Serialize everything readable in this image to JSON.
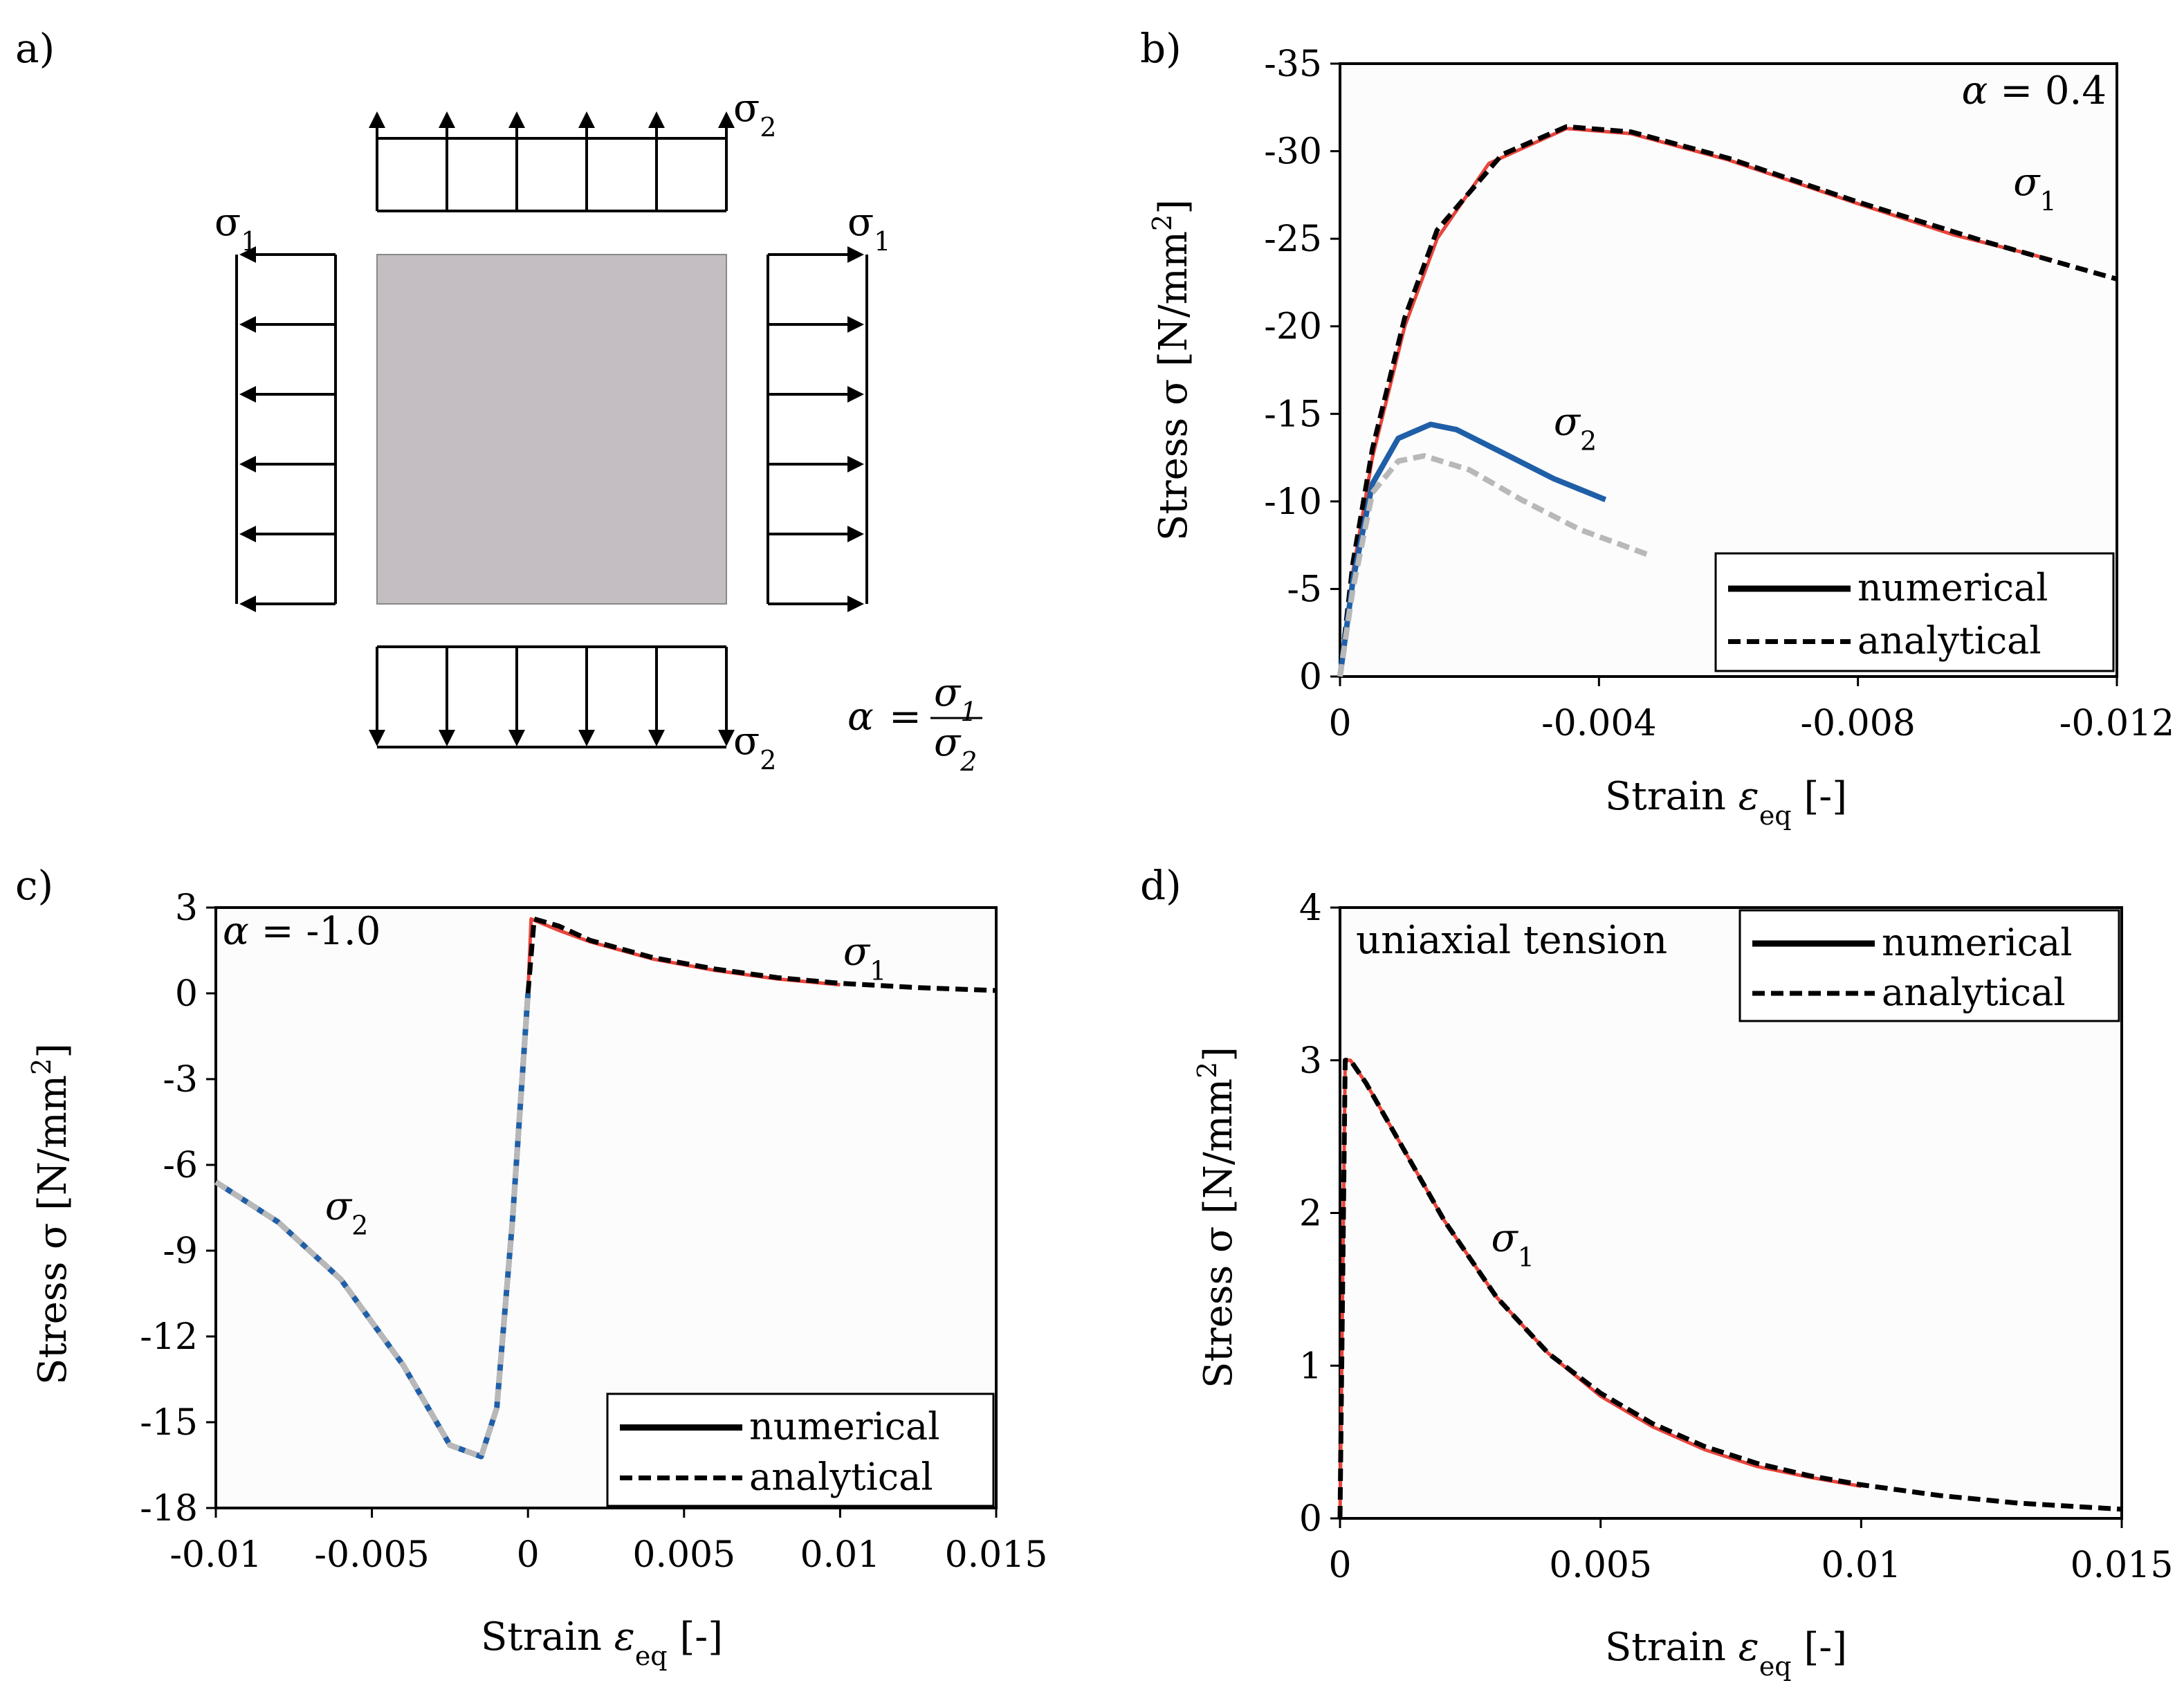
{
  "panels": {
    "a": {
      "label": "a)",
      "sigma1_left": "σ1",
      "sigma1_right": "σ1",
      "sigma2_top": "σ2",
      "sigma2_bottom": "σ2",
      "alpha_formula": "α = σ1 / σ2",
      "alpha_symbol": "α",
      "alpha_eq": "=",
      "alpha_num": "σ1",
      "alpha_den": "σ2"
    }
  },
  "legend": {
    "numerical": "numerical",
    "analytical": "analytical"
  },
  "colors": {
    "numerical_sigma1": "#e8453c",
    "numerical_sigma2": "#1f5fa8",
    "analytical": "#000000",
    "analytical_sigma2": "#b8b8b8",
    "specimen": "#c4bec2"
  },
  "chart_data": [
    {
      "id": "b",
      "panel_label": "b)",
      "type": "line",
      "annotation": "α = 0.4",
      "title": "",
      "xlabel": "Strain εeq [-]",
      "ylabel": "Stress σ [N/mm2]",
      "xlim": [
        0,
        -0.012
      ],
      "ylim": [
        0,
        -35
      ],
      "xticks": [
        0,
        -0.004,
        -0.008,
        -0.012
      ],
      "xtick_labels": [
        "0",
        "-0.004",
        "-0.008",
        "-0.012"
      ],
      "yticks": [
        0,
        -5,
        -10,
        -15,
        -20,
        -25,
        -30,
        -35
      ],
      "ytick_labels": [
        "0",
        "-5",
        "-10",
        "-15",
        "-20",
        "-25",
        "-30",
        "-35"
      ],
      "legend_position": "bottom-right",
      "series_labels": [
        {
          "text": "σ1",
          "x": -0.0104,
          "y": -27.5
        },
        {
          "text": "σ2",
          "x": -0.0033,
          "y": -13.8
        }
      ],
      "series": [
        {
          "name": "σ1 numerical",
          "style": "solid",
          "color": "#e8453c",
          "width": 5,
          "x": [
            0,
            -0.0002,
            -0.0005,
            -0.001,
            -0.0015,
            -0.0023,
            -0.0035,
            -0.0045,
            -0.006,
            -0.008,
            -0.0095,
            -0.011
          ],
          "y": [
            0,
            -6,
            -12.5,
            -20,
            -25,
            -29.3,
            -31.3,
            -31.0,
            -29.5,
            -27.0,
            -25.2,
            -23.8
          ]
        },
        {
          "name": "σ1 analytical",
          "style": "dashed",
          "color": "#000000",
          "width": 7,
          "x": [
            0,
            -0.0002,
            -0.0005,
            -0.001,
            -0.0015,
            -0.0025,
            -0.0035,
            -0.0045,
            -0.006,
            -0.008,
            -0.01,
            -0.012
          ],
          "y": [
            0,
            -6.5,
            -13,
            -20.5,
            -25.5,
            -29.8,
            -31.4,
            -31.1,
            -29.6,
            -27.1,
            -24.8,
            -22.7
          ]
        },
        {
          "name": "σ2 numerical",
          "style": "solid",
          "color": "#1f5fa8",
          "width": 8,
          "x": [
            0,
            -0.0002,
            -0.0005,
            -0.0009,
            -0.0014,
            -0.0018,
            -0.0025,
            -0.0033,
            -0.0041
          ],
          "y": [
            0,
            -5.5,
            -11,
            -13.6,
            -14.4,
            -14.1,
            -12.8,
            -11.3,
            -10.1
          ]
        },
        {
          "name": "σ2 analytical",
          "style": "dashed",
          "color": "#b8b8b8",
          "width": 8,
          "x": [
            0,
            -0.0002,
            -0.0005,
            -0.0009,
            -0.0013,
            -0.002,
            -0.0028,
            -0.0037,
            -0.0048
          ],
          "y": [
            0,
            -5,
            -10.5,
            -12.3,
            -12.6,
            -11.8,
            -10.1,
            -8.4,
            -6.9
          ]
        }
      ]
    },
    {
      "id": "c",
      "panel_label": "c)",
      "type": "line",
      "annotation": "α = -1.0",
      "title": "",
      "xlabel": "Strain εeq [-]",
      "ylabel": "Stress σ [N/mm2]",
      "xlim": [
        -0.01,
        0.015
      ],
      "ylim": [
        -18,
        3
      ],
      "xticks": [
        -0.01,
        -0.005,
        0,
        0.005,
        0.01,
        0.015
      ],
      "xtick_labels": [
        "-0.01",
        "-0.005",
        "0",
        "0.005",
        "0.01",
        "0.015"
      ],
      "yticks": [
        3,
        0,
        -3,
        -6,
        -9,
        -12,
        -15,
        -18
      ],
      "ytick_labels": [
        "3",
        "0",
        "-3",
        "-6",
        "-9",
        "-12",
        "-15",
        "-18"
      ],
      "legend_position": "bottom-right",
      "series_labels": [
        {
          "text": "σ1",
          "x": 0.0101,
          "y": 1.0
        },
        {
          "text": "σ2",
          "x": -0.0065,
          "y": -7.9
        }
      ],
      "series": [
        {
          "name": "σ2 numerical",
          "style": "solid",
          "color": "#1f5fa8",
          "width": 8,
          "x": [
            -0.01,
            -0.008,
            -0.006,
            -0.004,
            -0.0025,
            -0.0015,
            -0.001,
            -0.0005,
            0
          ],
          "y": [
            -6.6,
            -8.0,
            -10.0,
            -13.0,
            -15.8,
            -16.2,
            -14.5,
            -8.0,
            0
          ]
        },
        {
          "name": "σ2 analytical",
          "style": "dashed",
          "color": "#b8b8b8",
          "width": 8,
          "x": [
            -0.01,
            -0.008,
            -0.006,
            -0.004,
            -0.0025,
            -0.0015,
            -0.001,
            -0.0005,
            0
          ],
          "y": [
            -6.6,
            -8.0,
            -10.0,
            -13.0,
            -15.8,
            -16.2,
            -14.5,
            -8.0,
            0
          ]
        },
        {
          "name": "σ1 numerical",
          "style": "solid",
          "color": "#e8453c",
          "width": 5,
          "x": [
            0,
            0.0001,
            0.001,
            0.002,
            0.004,
            0.006,
            0.008,
            0.01
          ],
          "y": [
            0,
            2.6,
            2.2,
            1.8,
            1.2,
            0.8,
            0.5,
            0.3
          ]
        },
        {
          "name": "σ1 analytical",
          "style": "dashed",
          "color": "#000000",
          "width": 7,
          "x": [
            0,
            0.0002,
            0.001,
            0.002,
            0.004,
            0.006,
            0.008,
            0.01,
            0.0125,
            0.015
          ],
          "y": [
            0,
            2.6,
            2.35,
            1.85,
            1.25,
            0.85,
            0.55,
            0.35,
            0.2,
            0.1
          ]
        }
      ]
    },
    {
      "id": "d",
      "panel_label": "d)",
      "type": "line",
      "annotation": "uniaxial tension",
      "title": "",
      "xlabel": "Strain εeq [-]",
      "ylabel": "Stress σ [N/mm2]",
      "xlim": [
        0,
        0.015
      ],
      "ylim": [
        0,
        4
      ],
      "xticks": [
        0,
        0.005,
        0.01,
        0.015
      ],
      "xtick_labels": [
        "0",
        "0.005",
        "0.01",
        "0.015"
      ],
      "yticks": [
        0,
        1,
        2,
        3,
        4
      ],
      "ytick_labels": [
        "0",
        "1",
        "2",
        "3",
        "4"
      ],
      "legend_position": "top-right",
      "series_labels": [
        {
          "text": "σ1",
          "x": 0.0029,
          "y": 1.75
        }
      ],
      "series": [
        {
          "name": "σ1 numerical",
          "style": "solid",
          "color": "#e8453c",
          "width": 5,
          "x": [
            0,
            0.0001,
            0.0002,
            0.0005,
            0.001,
            0.002,
            0.003,
            0.004,
            0.005,
            0.006,
            0.007,
            0.008,
            0.009,
            0.01
          ],
          "y": [
            0,
            3.0,
            3.0,
            2.85,
            2.55,
            1.95,
            1.45,
            1.08,
            0.8,
            0.6,
            0.45,
            0.34,
            0.27,
            0.21
          ]
        },
        {
          "name": "σ1 analytical",
          "style": "dashed",
          "color": "#000000",
          "width": 7,
          "x": [
            0,
            0.0001,
            0.0002,
            0.0005,
            0.001,
            0.002,
            0.003,
            0.004,
            0.005,
            0.006,
            0.007,
            0.008,
            0.009,
            0.01,
            0.0115,
            0.013,
            0.015
          ],
          "y": [
            0,
            3.0,
            3.0,
            2.85,
            2.55,
            1.95,
            1.45,
            1.08,
            0.82,
            0.62,
            0.47,
            0.36,
            0.28,
            0.22,
            0.15,
            0.1,
            0.06
          ]
        }
      ]
    }
  ]
}
